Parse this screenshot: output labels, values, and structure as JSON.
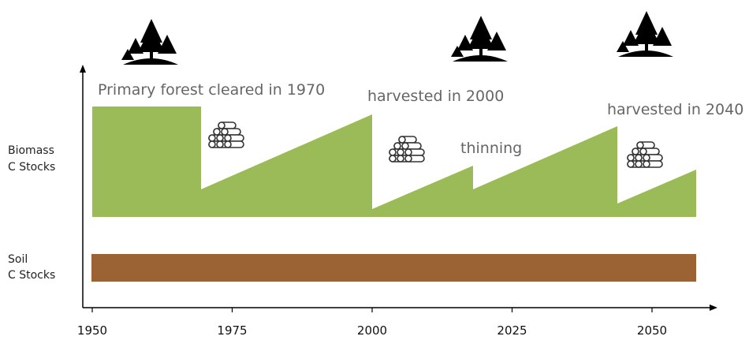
{
  "y_labels": {
    "biomass": [
      "Biomass",
      "C Stocks"
    ],
    "soil": [
      "Soil",
      "C Stocks"
    ]
  },
  "annotations": [
    "Primary forest cleared in 1970",
    "harvested in 2000",
    "thinning",
    "harvested in 2040"
  ],
  "x_axis": {
    "ticks": [
      1950,
      1975,
      2000,
      2025,
      2050
    ]
  }
}
